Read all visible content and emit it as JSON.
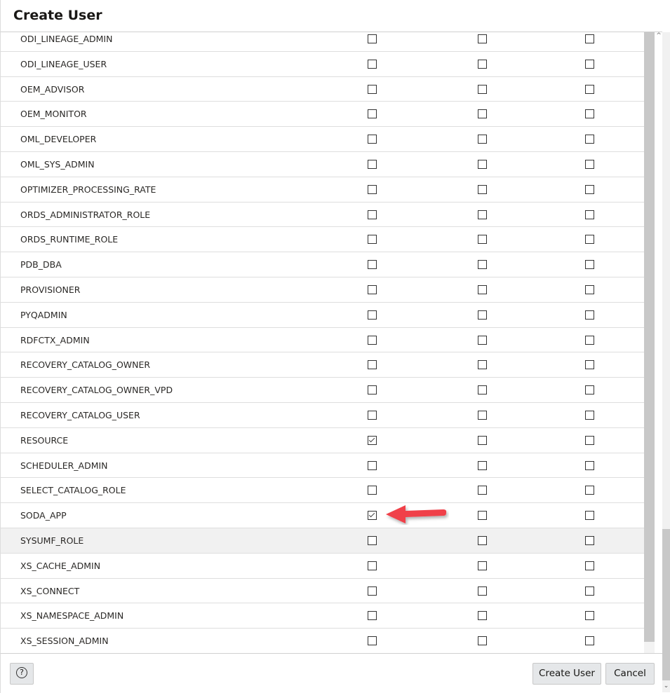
{
  "dialog": {
    "title": "Create User"
  },
  "roles": [
    {
      "name": "ODI_LINEAGE_ADMIN",
      "checked": [
        false,
        false,
        false
      ]
    },
    {
      "name": "ODI_LINEAGE_USER",
      "checked": [
        false,
        false,
        false
      ]
    },
    {
      "name": "OEM_ADVISOR",
      "checked": [
        false,
        false,
        false
      ]
    },
    {
      "name": "OEM_MONITOR",
      "checked": [
        false,
        false,
        false
      ]
    },
    {
      "name": "OML_DEVELOPER",
      "checked": [
        false,
        false,
        false
      ]
    },
    {
      "name": "OML_SYS_ADMIN",
      "checked": [
        false,
        false,
        false
      ]
    },
    {
      "name": "OPTIMIZER_PROCESSING_RATE",
      "checked": [
        false,
        false,
        false
      ]
    },
    {
      "name": "ORDS_ADMINISTRATOR_ROLE",
      "checked": [
        false,
        false,
        false
      ]
    },
    {
      "name": "ORDS_RUNTIME_ROLE",
      "checked": [
        false,
        false,
        false
      ]
    },
    {
      "name": "PDB_DBA",
      "checked": [
        false,
        false,
        false
      ]
    },
    {
      "name": "PROVISIONER",
      "checked": [
        false,
        false,
        false
      ]
    },
    {
      "name": "PYQADMIN",
      "checked": [
        false,
        false,
        false
      ]
    },
    {
      "name": "RDFCTX_ADMIN",
      "checked": [
        false,
        false,
        false
      ]
    },
    {
      "name": "RECOVERY_CATALOG_OWNER",
      "checked": [
        false,
        false,
        false
      ]
    },
    {
      "name": "RECOVERY_CATALOG_OWNER_VPD",
      "checked": [
        false,
        false,
        false
      ]
    },
    {
      "name": "RECOVERY_CATALOG_USER",
      "checked": [
        false,
        false,
        false
      ]
    },
    {
      "name": "RESOURCE",
      "checked": [
        true,
        false,
        false
      ]
    },
    {
      "name": "SCHEDULER_ADMIN",
      "checked": [
        false,
        false,
        false
      ]
    },
    {
      "name": "SELECT_CATALOG_ROLE",
      "checked": [
        false,
        false,
        false
      ]
    },
    {
      "name": "SODA_APP",
      "checked": [
        true,
        false,
        false
      ]
    },
    {
      "name": "SYSUMF_ROLE",
      "checked": [
        false,
        false,
        false
      ],
      "hovered": true
    },
    {
      "name": "XS_CACHE_ADMIN",
      "checked": [
        false,
        false,
        false
      ]
    },
    {
      "name": "XS_CONNECT",
      "checked": [
        false,
        false,
        false
      ]
    },
    {
      "name": "XS_NAMESPACE_ADMIN",
      "checked": [
        false,
        false,
        false
      ]
    },
    {
      "name": "XS_SESSION_ADMIN",
      "checked": [
        false,
        false,
        false
      ]
    }
  ],
  "footer": {
    "help_icon": "?",
    "create_label": "Create User",
    "cancel_label": "Cancel"
  },
  "annotation": {
    "arrow_color": "#f04048",
    "points_to": "SODA_APP"
  }
}
